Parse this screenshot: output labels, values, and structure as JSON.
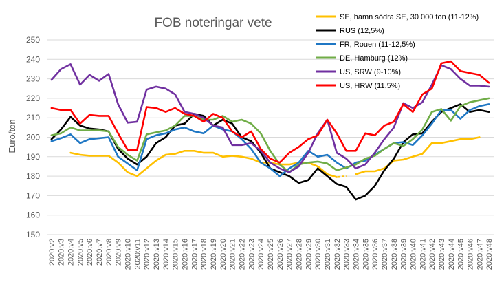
{
  "chart_data": {
    "type": "line",
    "title": "FOB noteringar vete",
    "xlabel": "",
    "ylabel": "Euro/ton",
    "ylim": [
      150,
      250
    ],
    "yticks": [
      150,
      160,
      170,
      180,
      190,
      200,
      210,
      220,
      230,
      240,
      250
    ],
    "grid": true,
    "legend_position": "top-right",
    "x": [
      "2020:v2",
      "2020:v3",
      "2020:v4",
      "2020:v5",
      "2020:v6",
      "2020:v7",
      "2020:v8",
      "2020:v9",
      "2020:v10",
      "2020:v11",
      "2020:v12",
      "2020:v13",
      "2020:v14",
      "2020:v15",
      "2020:v16",
      "2020:v17",
      "2020:v18",
      "2020:v19",
      "2020:v20",
      "2020:v21",
      "2020:v22",
      "2020:v23",
      "2020:v24",
      "2020:v25",
      "2020:v26",
      "2020:v27",
      "2020:v28",
      "2020:v29",
      "2020:v30",
      "2020:v31",
      "2020:v32",
      "2020:v33",
      "2020:v34",
      "2020:v35",
      "2020:v36",
      "2020:v37",
      "2020:v38",
      "2020:v39",
      "2020:v40",
      "2020:v41",
      "2020:v42",
      "2020:v43",
      "2020:v44",
      "2020:v45",
      "2020:v46",
      "2020:v47",
      "2020:v48"
    ],
    "series": [
      {
        "name": "SE, hamn södra SE, 30 000 ton (11-12%)",
        "color": "#ffc000",
        "values": [
          null,
          null,
          192,
          191,
          190.5,
          190.5,
          190.5,
          187,
          182,
          180,
          184,
          188,
          191,
          191.5,
          193,
          193,
          192,
          192,
          190,
          190.5,
          190,
          189,
          187,
          187,
          186,
          186,
          187,
          187,
          185,
          181,
          179.5,
          null,
          181,
          182.5,
          182.5,
          184,
          188,
          188.5,
          190,
          191.5,
          197,
          197,
          198,
          199,
          199,
          200,
          null
        ],
        "dotted_segment": {
          "from_x": "2020:v29",
          "to_x": "2020:v33",
          "values": [
            187,
            185,
            181,
            179.5,
            180
          ]
        }
      },
      {
        "name": "RUS (12,5%)",
        "color": "#000000",
        "values": [
          199,
          204,
          210.5,
          206,
          204.5,
          204,
          203,
          194,
          189,
          186,
          190,
          197,
          200,
          206,
          207,
          212,
          211,
          206,
          209,
          207,
          200,
          198,
          192,
          184,
          182,
          180,
          176.5,
          178,
          184,
          180,
          176,
          174.5,
          168,
          170,
          175,
          183,
          189,
          197.5,
          201.5,
          202,
          208,
          213,
          215,
          217,
          213,
          214,
          213
        ]
      },
      {
        "name": "FR, Rouen (11-12,5%)",
        "color": "#1f77c4",
        "values": [
          198,
          199.5,
          201.5,
          197,
          199,
          199.5,
          200,
          190,
          186.5,
          183,
          199,
          201,
          202,
          204,
          205,
          203,
          202,
          206,
          204,
          203,
          199,
          194,
          187,
          184,
          180,
          184,
          187,
          193,
          190,
          191,
          187,
          184,
          187,
          188,
          191,
          194,
          197,
          197.5,
          196,
          201,
          207,
          214,
          214,
          209.5,
          214,
          216,
          217
        ]
      },
      {
        "name": "DE, Hamburg (12%)",
        "color": "#70ad47",
        "values": [
          201,
          202,
          205,
          203.5,
          203.5,
          203.5,
          203,
          195,
          191,
          188,
          201.5,
          202.5,
          203.5,
          206,
          211,
          211,
          209,
          209,
          211,
          208,
          209,
          207,
          202,
          193,
          186,
          182,
          186,
          187,
          187.5,
          186.5,
          183,
          184.5,
          186,
          189,
          190.5,
          194,
          197,
          195.5,
          199,
          204,
          213,
          214.5,
          208.5,
          216,
          218,
          219,
          220
        ]
      },
      {
        "name": "US, SRW (9-10%)",
        "color": "#7030a0",
        "values": [
          229.5,
          235,
          237.5,
          227,
          232,
          229,
          232.5,
          217,
          207.5,
          208,
          224.5,
          226,
          225,
          222,
          213,
          212,
          210,
          206,
          205,
          196,
          196,
          197,
          193,
          187,
          184,
          182,
          185,
          192,
          202,
          209,
          192,
          189,
          184,
          186,
          192,
          199,
          205,
          217.5,
          215,
          218,
          227,
          237,
          235,
          230,
          226.5,
          226.5,
          226
        ]
      },
      {
        "name": "US, HRW (11,5%)",
        "color": "#ff0000",
        "values": [
          215,
          214,
          214,
          207,
          211.5,
          211,
          211,
          202,
          193.5,
          193.5,
          215.5,
          215,
          213,
          215,
          212,
          211,
          208,
          212,
          210,
          203,
          200,
          203,
          194,
          189,
          187,
          192,
          195,
          199,
          201,
          209,
          202,
          193,
          193,
          202,
          201,
          206,
          208,
          217,
          213,
          222,
          225,
          238,
          239,
          234,
          233,
          232,
          228
        ]
      }
    ]
  }
}
